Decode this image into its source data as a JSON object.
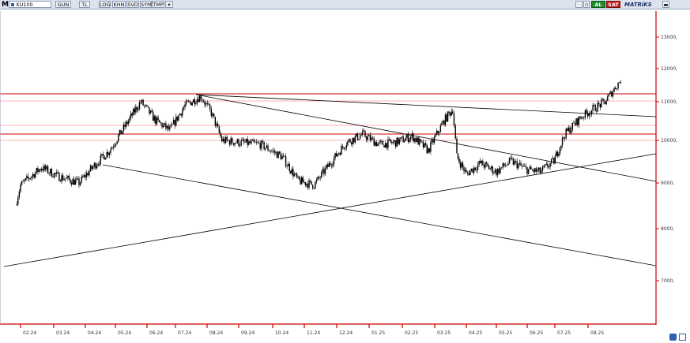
{
  "toolbar": {
    "logo": "M",
    "symbol": "XU100",
    "buttons": [
      "GUN",
      "TL",
      "LOG",
      "KHN",
      "SVD",
      "SYM",
      "TMP"
    ],
    "al_label": "AL",
    "sat_label": "SAT",
    "brand": "MATRiKS"
  },
  "colors": {
    "axis": "#cc0000",
    "grid": "#ff9999",
    "candles": "#000000",
    "levels": "#cc0000",
    "trendlines": "#000000"
  },
  "chart_data": {
    "type": "candlestick",
    "symbol": "XU100",
    "x_ticks": [
      "02.24",
      "03.24",
      "04.24",
      "05.24",
      "06.24",
      "07.24",
      "08.24",
      "09.24",
      "10.24",
      "11.24",
      "12.24",
      "01.25",
      "02.25",
      "03.25",
      "04.25",
      "05.25",
      "06.25",
      "07.25",
      "08.25"
    ],
    "y_ticks": [
      "13000,",
      "12000,",
      "11000,",
      "10000,",
      "9000,",
      "8000,",
      "7000,"
    ],
    "close_trace": [
      {
        "x": "2024-01-15",
        "close": 8500
      },
      {
        "x": "2024-02-01",
        "close": 8950
      },
      {
        "x": "2024-02-20",
        "close": 9350
      },
      {
        "x": "2024-03-05",
        "close": 9150
      },
      {
        "x": "2024-03-25",
        "close": 9000
      },
      {
        "x": "2024-04-10",
        "close": 9400
      },
      {
        "x": "2024-04-25",
        "close": 9750
      },
      {
        "x": "2024-05-10",
        "close": 10350
      },
      {
        "x": "2024-05-25",
        "close": 11000
      },
      {
        "x": "2024-06-10",
        "close": 10500
      },
      {
        "x": "2024-06-25",
        "close": 10250
      },
      {
        "x": "2024-07-10",
        "close": 10900
      },
      {
        "x": "2024-07-25",
        "close": 11150
      },
      {
        "x": "2024-08-05",
        "close": 10700
      },
      {
        "x": "2024-08-15",
        "close": 10000
      },
      {
        "x": "2024-09-01",
        "close": 9950
      },
      {
        "x": "2024-09-20",
        "close": 9900
      },
      {
        "x": "2024-10-10",
        "close": 9600
      },
      {
        "x": "2024-10-25",
        "close": 9050
      },
      {
        "x": "2024-11-10",
        "close": 8950
      },
      {
        "x": "2024-11-25",
        "close": 9450
      },
      {
        "x": "2024-12-10",
        "close": 9950
      },
      {
        "x": "2024-12-25",
        "close": 10150
      },
      {
        "x": "2025-01-10",
        "close": 9900
      },
      {
        "x": "2025-01-25",
        "close": 9950
      },
      {
        "x": "2025-02-10",
        "close": 10100
      },
      {
        "x": "2025-02-25",
        "close": 9750
      },
      {
        "x": "2025-03-10",
        "close": 10500
      },
      {
        "x": "2025-03-18",
        "close": 10800
      },
      {
        "x": "2025-03-22",
        "close": 9600
      },
      {
        "x": "2025-04-01",
        "close": 9200
      },
      {
        "x": "2025-04-15",
        "close": 9450
      },
      {
        "x": "2025-05-01",
        "close": 9250
      },
      {
        "x": "2025-05-15",
        "close": 9500
      },
      {
        "x": "2025-06-01",
        "close": 9300
      },
      {
        "x": "2025-06-15",
        "close": 9250
      },
      {
        "x": "2025-06-30",
        "close": 9500
      },
      {
        "x": "2025-07-10",
        "close": 10150
      },
      {
        "x": "2025-07-25",
        "close": 10600
      },
      {
        "x": "2025-08-05",
        "close": 10800
      },
      {
        "x": "2025-08-15",
        "close": 11000
      },
      {
        "x": "2025-08-28",
        "close": 11650
      }
    ],
    "grid": false,
    "legend": "none"
  }
}
